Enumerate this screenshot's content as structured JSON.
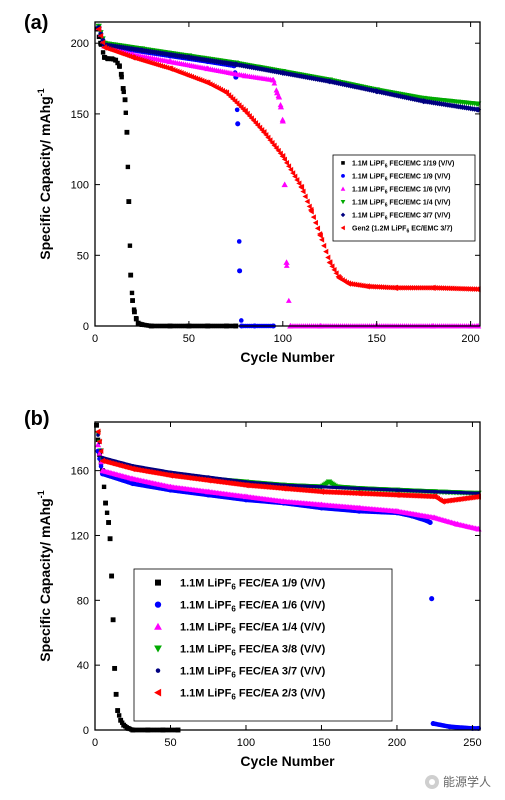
{
  "watermark": {
    "text": "能源学人",
    "icon": "wechat-logo-icon"
  },
  "chart_data": [
    {
      "type": "scatter",
      "panel_label": "(a)",
      "xlabel": "Cycle Number",
      "ylabel": "Specific Capacity/ mAhg-1",
      "ylabel_main": "Specific Capacity/ mAhg",
      "ylabel_sup": "-1",
      "xlim": [
        0,
        205
      ],
      "ylim": [
        0,
        215
      ],
      "xticks": [
        0,
        50,
        100,
        150,
        200
      ],
      "yticks": [
        0,
        50,
        100,
        150,
        200
      ],
      "grid": false,
      "legend_placement": "center-right",
      "series": [
        {
          "name": "1.1M LiPF6 FEC/EMC 1/19 (V/V)",
          "legend_pre": "1.1M LiPF",
          "legend_sub": "6",
          "legend_post": " FEC/EMC 1/19 (V/V)",
          "color": "#000000",
          "marker": "square",
          "points": [
            [
              1,
              210
            ],
            [
              3,
              200
            ],
            [
              5,
              190
            ],
            [
              7,
              189
            ],
            [
              9,
              189
            ],
            [
              11,
              188
            ],
            [
              13,
              184
            ],
            [
              14,
              178
            ],
            [
              15,
              168
            ],
            [
              16,
              160
            ],
            [
              17,
              137
            ],
            [
              18,
              88
            ],
            [
              19,
              36
            ],
            [
              20,
              18
            ],
            [
              21,
              10
            ],
            [
              22,
              5
            ],
            [
              23,
              2
            ],
            [
              25,
              1
            ],
            [
              30,
              0
            ],
            [
              40,
              0
            ],
            [
              50,
              0
            ],
            [
              60,
              0
            ],
            [
              70,
              0
            ],
            [
              75,
              0
            ]
          ]
        },
        {
          "name": "1.1M LiPF6 FEC/EMC 1/9 (V/V)",
          "legend_pre": "1.1M LiPF",
          "legend_sub": "6",
          "legend_post": " FEC/EMC 1/9 (V/V)",
          "color": "#0000ff",
          "marker": "circle",
          "points": [
            [
              2,
              212
            ],
            [
              5,
              199
            ],
            [
              20,
              195
            ],
            [
              40,
              191
            ],
            [
              60,
              187
            ],
            [
              74,
              184
            ],
            [
              75,
              176
            ],
            [
              76,
              143
            ],
            [
              77,
              39
            ],
            [
              78,
              0
            ],
            [
              85,
              0
            ],
            [
              95,
              0
            ]
          ]
        },
        {
          "name": "1.1M LiPF6 FEC/EMC 1/6 (V/V)",
          "legend_pre": "1.1M LiPF",
          "legend_sub": "6",
          "legend_post": " FEC/EMC 1/6 (V/V)",
          "color": "#ff00ff",
          "marker": "triangle-up",
          "points": [
            [
              2,
              211
            ],
            [
              5,
              198
            ],
            [
              20,
              192
            ],
            [
              40,
              187
            ],
            [
              60,
              182
            ],
            [
              80,
              177
            ],
            [
              95,
              174
            ],
            [
              97,
              165
            ],
            [
              98,
              162
            ],
            [
              99,
              155
            ],
            [
              100,
              145
            ],
            [
              101,
              100
            ],
            [
              102,
              45
            ],
            [
              104,
              0
            ],
            [
              120,
              0
            ],
            [
              150,
              0
            ],
            [
              180,
              0
            ],
            [
              200,
              0
            ],
            [
              204,
              0
            ]
          ]
        },
        {
          "name": "1.1M LiPF6 FEC/EMC 1/4 (V/V)",
          "legend_pre": "1.1M LiPF",
          "legend_sub": "6",
          "legend_post": " FEC/EMC 1/4 (V/V)",
          "color": "#00aa00",
          "marker": "triangle-down",
          "points": [
            [
              2,
              212
            ],
            [
              5,
              200
            ],
            [
              25,
              196
            ],
            [
              50,
              191
            ],
            [
              75,
              186
            ],
            [
              100,
              180
            ],
            [
              125,
              174
            ],
            [
              150,
              167
            ],
            [
              175,
              161
            ],
            [
              204,
              157
            ]
          ]
        },
        {
          "name": "1.1M LiPF6 FEC/EMC 3/7 (V/V)",
          "legend_pre": "1.1M LiPF",
          "legend_sub": "6",
          "legend_post": " FEC/EMC 3/7 (V/V)",
          "color": "#000080",
          "marker": "diamond",
          "points": [
            [
              2,
              211
            ],
            [
              5,
              199
            ],
            [
              25,
              195
            ],
            [
              50,
              190
            ],
            [
              75,
              185
            ],
            [
              100,
              179
            ],
            [
              125,
              173
            ],
            [
              150,
              166
            ],
            [
              175,
              159
            ],
            [
              204,
              153
            ]
          ]
        },
        {
          "name": "Gen2 (1.2M LiPF6 EC/EMC 3/7)",
          "legend_pre": "Gen2 (1.2M LiPF",
          "legend_sub": "6",
          "legend_post": " EC/EMC 3/7)",
          "color": "#ff0000",
          "marker": "triangle-left",
          "points": [
            [
              2,
              210
            ],
            [
              5,
              197
            ],
            [
              20,
              190
            ],
            [
              40,
              182
            ],
            [
              60,
              172
            ],
            [
              70,
              165
            ],
            [
              80,
              152
            ],
            [
              90,
              137
            ],
            [
              100,
              120
            ],
            [
              110,
              98
            ],
            [
              115,
              82
            ],
            [
              120,
              64
            ],
            [
              125,
              45
            ],
            [
              130,
              34
            ],
            [
              135,
              30
            ],
            [
              145,
              28
            ],
            [
              160,
              27
            ],
            [
              180,
              27
            ],
            [
              204,
              26
            ]
          ]
        }
      ]
    },
    {
      "type": "scatter",
      "panel_label": "(b)",
      "xlabel": "Cycle Number",
      "ylabel": "Specific Capacity/ mAhg-1",
      "ylabel_main": "Specific Capacity/ mAhg",
      "ylabel_sup": "-1",
      "xlim": [
        0,
        255
      ],
      "ylim": [
        0,
        190
      ],
      "xticks": [
        0,
        50,
        100,
        150,
        200,
        250
      ],
      "yticks": [
        0,
        40,
        80,
        120,
        160
      ],
      "grid": false,
      "legend_placement": "bottom-center",
      "series": [
        {
          "name": "1.1M LiPF6 FEC/EA 1/9 (V/V)",
          "legend_pre": "1.1M LiPF",
          "legend_sub": "6",
          "legend_post": " FEC/EA 1/9 (V/V)",
          "color": "#000000",
          "marker": "square",
          "points": [
            [
              1,
              188
            ],
            [
              3,
              170
            ],
            [
              5,
              160
            ],
            [
              7,
              140
            ],
            [
              9,
              128
            ],
            [
              10,
              118
            ],
            [
              11,
              95
            ],
            [
              12,
              68
            ],
            [
              13,
              38
            ],
            [
              14,
              22
            ],
            [
              15,
              12
            ],
            [
              17,
              6
            ],
            [
              19,
              3
            ],
            [
              22,
              1
            ],
            [
              25,
              0
            ],
            [
              35,
              0
            ],
            [
              45,
              0
            ],
            [
              55,
              0
            ]
          ]
        },
        {
          "name": "1.1M LiPF6 FEC/EA 1/6 (V/V)",
          "legend_pre": "1.1M LiPF",
          "legend_sub": "6",
          "legend_post": " FEC/EA 1/6 (V/V)",
          "color": "#0000ff",
          "marker": "circle",
          "points": [
            [
              2,
              172
            ],
            [
              5,
              158
            ],
            [
              25,
              152
            ],
            [
              50,
              148
            ],
            [
              75,
              145
            ],
            [
              100,
              142
            ],
            [
              125,
              140
            ],
            [
              150,
              137
            ],
            [
              175,
              135
            ],
            [
              200,
              134
            ],
            [
              210,
              132
            ],
            [
              220,
              129
            ],
            [
              222,
              128
            ],
            [
              223,
              81
            ],
            [
              224,
              4
            ],
            [
              235,
              2
            ],
            [
              250,
              1
            ],
            [
              254,
              1
            ]
          ]
        },
        {
          "name": "1.1M LiPF6 FEC/EA 1/4 (V/V)",
          "legend_pre": "1.1M LiPF",
          "legend_sub": "6",
          "legend_post": " FEC/EA 1/4 (V/V)",
          "color": "#ff00ff",
          "marker": "triangle-up",
          "points": [
            [
              2,
              176
            ],
            [
              5,
              160
            ],
            [
              25,
              155
            ],
            [
              50,
              150
            ],
            [
              75,
              147
            ],
            [
              100,
              144
            ],
            [
              125,
              141
            ],
            [
              150,
              139
            ],
            [
              175,
              137
            ],
            [
              200,
              135
            ],
            [
              225,
              131
            ],
            [
              240,
              127
            ],
            [
              254,
              124
            ]
          ]
        },
        {
          "name": "1.1M LiPF6 FEC/EA 3/8 (V/V)",
          "legend_pre": "1.1M LiPF",
          "legend_sub": "6",
          "legend_post": " FEC/EA 3/8 (V/V)",
          "color": "#00aa00",
          "marker": "triangle-down",
          "points": [
            [
              2,
              183
            ],
            [
              5,
              167
            ],
            [
              25,
              162
            ],
            [
              50,
              158
            ],
            [
              75,
              155
            ],
            [
              100,
              153
            ],
            [
              125,
              151
            ],
            [
              150,
              150
            ],
            [
              155,
              153
            ],
            [
              160,
              150
            ],
            [
              175,
              149
            ],
            [
              200,
              148
            ],
            [
              225,
              147
            ],
            [
              254,
              146
            ]
          ]
        },
        {
          "name": "1.1M LiPF6 FEC/EA 3/7 (V/V)",
          "legend_pre": "1.1M LiPF",
          "legend_sub": "6",
          "legend_post": " FEC/EA 3/7 (V/V)",
          "color": "#000080",
          "marker": "circle-small",
          "points": [
            [
              2,
              182
            ],
            [
              5,
              168
            ],
            [
              25,
              163
            ],
            [
              50,
              159
            ],
            [
              75,
              156
            ],
            [
              100,
              153
            ],
            [
              125,
              151
            ],
            [
              150,
              150
            ],
            [
              175,
              149
            ],
            [
              200,
              148
            ],
            [
              225,
              147
            ],
            [
              254,
              146
            ]
          ]
        },
        {
          "name": "1.1M LiPF6 FEC/EA 2/3 (V/V)",
          "legend_pre": "1.1M LiPF",
          "legend_sub": "6",
          "legend_post": " FEC/EA 2/3 (V/V)",
          "color": "#ff0000",
          "marker": "triangle-left",
          "points": [
            [
              2,
              184
            ],
            [
              5,
              166
            ],
            [
              25,
              161
            ],
            [
              50,
              157
            ],
            [
              75,
              154
            ],
            [
              100,
              151
            ],
            [
              125,
              149
            ],
            [
              150,
              147
            ],
            [
              175,
              146
            ],
            [
              200,
              145
            ],
            [
              225,
              144
            ],
            [
              230,
              141
            ],
            [
              254,
              144
            ]
          ]
        }
      ]
    }
  ]
}
